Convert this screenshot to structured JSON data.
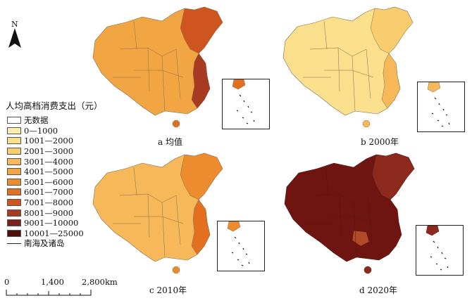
{
  "north_arrow": {
    "label": "N"
  },
  "legend": {
    "title": "人均高档消费支出（元）",
    "classes": [
      {
        "label": "无数据",
        "color": "#ffffff"
      },
      {
        "label": "0—1000",
        "color": "#fdefb4"
      },
      {
        "label": "1001—2000",
        "color": "#fbe08e"
      },
      {
        "label": "2001—3000",
        "color": "#f9cd6d"
      },
      {
        "label": "3001—4000",
        "color": "#f6b859"
      },
      {
        "label": "4001—5000",
        "color": "#f2a543"
      },
      {
        "label": "5001—6000",
        "color": "#ec8c2e"
      },
      {
        "label": "6001—7000",
        "color": "#e3701f"
      },
      {
        "label": "7001—8000",
        "color": "#cf5520"
      },
      {
        "label": "8001—9000",
        "color": "#a83a22"
      },
      {
        "label": "9001—10000",
        "color": "#7c1f1a"
      },
      {
        "label": "10001—25000",
        "color": "#4a100c"
      }
    ],
    "line_label": "南海及诸岛"
  },
  "scale_bar": {
    "ticks": [
      "0",
      "1,400",
      "2,800"
    ],
    "unit": "km"
  },
  "maps": [
    {
      "caption": "a 均值",
      "base_color": "#f2a543",
      "accent_color": "#cf5520",
      "dark_color": "#a83a22",
      "island_color": "#e3701f"
    },
    {
      "caption": "b 2000年",
      "base_color": "#fbe08e",
      "accent_color": "#f9cd6d",
      "dark_color": "#f6b859",
      "island_color": "#f6b859"
    },
    {
      "caption": "c 2010年",
      "base_color": "#f6b859",
      "accent_color": "#ec8c2e",
      "dark_color": "#e3701f",
      "island_color": "#ec8c2e"
    },
    {
      "caption": "d 2020年",
      "base_color": "#6e1512",
      "accent_color": "#8c2a1e",
      "dark_color": "#b24a28",
      "island_color": "#8c2a1e"
    }
  ]
}
